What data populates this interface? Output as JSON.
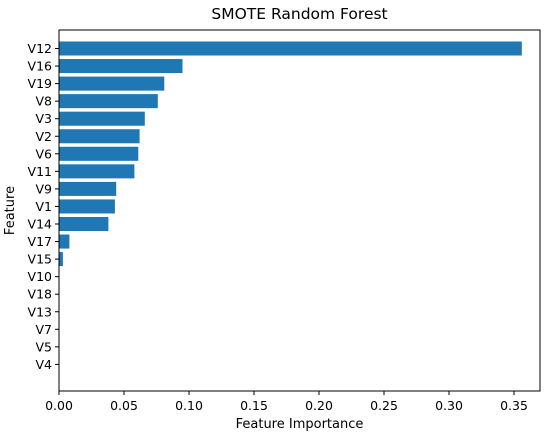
{
  "chart_data": {
    "type": "bar",
    "orientation": "horizontal",
    "title": "SMOTE Random Forest",
    "xlabel": "Feature Importance",
    "ylabel": "Feature",
    "categories": [
      "V12",
      "V16",
      "V19",
      "V8",
      "V3",
      "V2",
      "V6",
      "V11",
      "V9",
      "V1",
      "V14",
      "V17",
      "V15",
      "V10",
      "V18",
      "V13",
      "V7",
      "V5",
      "V4"
    ],
    "values": [
      0.356,
      0.095,
      0.081,
      0.076,
      0.066,
      0.062,
      0.061,
      0.058,
      0.044,
      0.043,
      0.038,
      0.008,
      0.003,
      0.0,
      0.0,
      0.0,
      0.0,
      0.0,
      0.0
    ],
    "xlim": [
      0,
      0.37
    ],
    "xticks": [
      "0.00",
      "0.05",
      "0.10",
      "0.15",
      "0.20",
      "0.25",
      "0.30",
      "0.35"
    ],
    "bar_color": "#1f77b4",
    "grid": false
  }
}
